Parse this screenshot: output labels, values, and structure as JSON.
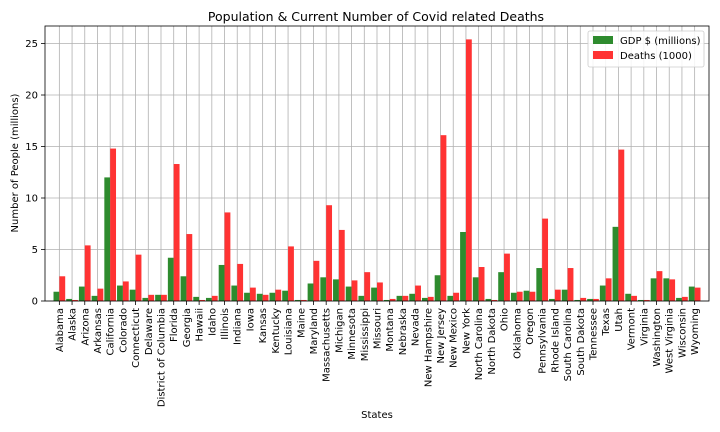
{
  "chart_data": {
    "type": "bar",
    "title": "Population & Current Number of Covid related Deaths",
    "xlabel": "States",
    "ylabel": "Number of People (millions)",
    "ylim": [
      0,
      26.7
    ],
    "yticks": [
      0,
      5,
      10,
      15,
      20,
      25
    ],
    "grid": true,
    "legend_position": "top-right",
    "categories": [
      "Alabama",
      "Alaska",
      "Arizona",
      "Arkansas",
      "California",
      "Colorado",
      "Connecticut",
      "Delaware",
      "District of Columbia",
      "Florida",
      "Georgia",
      "Hawaii",
      "Idaho",
      "Illinois",
      "Indiana",
      "Iowa",
      "Kansas",
      "Kentucky",
      "Louisiana",
      "Maine",
      "Maryland",
      "Massachusetts",
      "Michigan",
      "Minnesota",
      "Mississippi",
      "Missouri",
      "Montana",
      "Nebraska",
      "Nevada",
      "New Hampshire",
      "New Jersey",
      "New Mexico",
      "New York",
      "North Carolina",
      "North Dakota",
      "Ohio",
      "Oklahoma",
      "Oregon",
      "Pennsylvania",
      "Rhode Island",
      "South Carolina",
      "South Dakota",
      "Tennessee",
      "Texas",
      "Utah",
      "Vermont",
      "Virginia",
      "Washington",
      "West Virginia",
      "Wisconsin",
      "Wyoming"
    ],
    "series": [
      {
        "name": "GDP $ (millions)",
        "color": "#2e8b2e",
        "values": [
          0.9,
          0.2,
          1.4,
          0.5,
          12.0,
          1.5,
          1.1,
          0.3,
          0.6,
          4.2,
          2.4,
          0.4,
          0.3,
          3.5,
          1.5,
          0.8,
          0.7,
          0.8,
          1.0,
          0.1,
          1.7,
          2.3,
          2.1,
          1.4,
          0.5,
          1.3,
          0.1,
          0.5,
          0.7,
          0.3,
          2.5,
          0.5,
          6.7,
          2.3,
          0.2,
          2.8,
          0.8,
          1.0,
          3.2,
          0.2,
          1.1,
          0.1,
          0.2,
          1.5,
          7.2,
          0.7,
          0.1,
          2.2,
          2.2,
          0.3,
          1.4
        ]
      },
      {
        "name": "Deaths (1000)",
        "color": "#ff3333",
        "values": [
          2.4,
          0.1,
          5.4,
          1.2,
          14.8,
          1.9,
          4.5,
          0.6,
          0.6,
          13.3,
          6.5,
          0.1,
          0.5,
          8.6,
          3.6,
          1.3,
          0.6,
          1.1,
          5.3,
          0.1,
          3.9,
          9.3,
          6.9,
          2.0,
          2.8,
          1.8,
          0.2,
          0.5,
          1.5,
          0.4,
          16.1,
          0.8,
          25.4,
          3.3,
          0.1,
          4.6,
          0.9,
          0.9,
          8.0,
          1.1,
          3.2,
          0.3,
          0.2,
          2.2,
          14.7,
          0.5,
          0.1,
          2.9,
          2.1,
          0.4,
          1.3
        ]
      }
    ]
  }
}
